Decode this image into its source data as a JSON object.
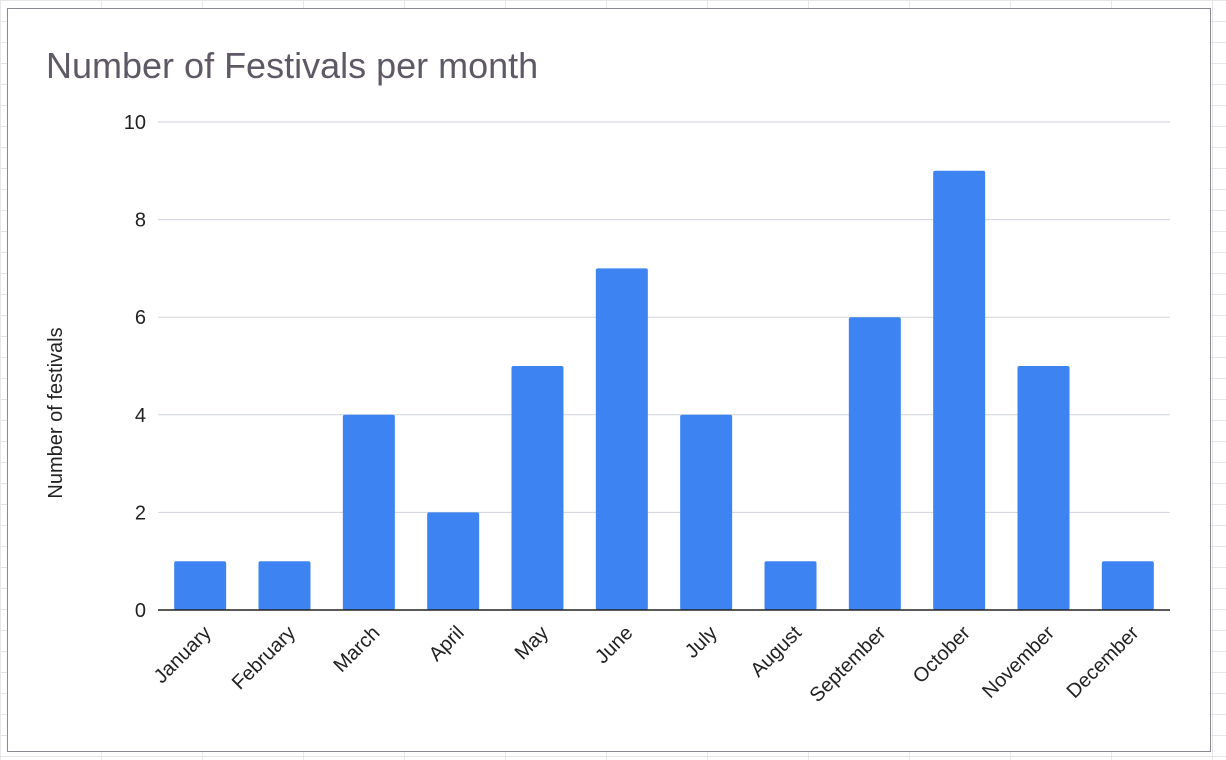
{
  "chart_data": {
    "type": "bar",
    "title": "Number of Festivals per month",
    "xlabel": "",
    "ylabel": "Number of festivals",
    "categories": [
      "January",
      "February",
      "March",
      "April",
      "May",
      "June",
      "July",
      "August",
      "September",
      "October",
      "November",
      "December"
    ],
    "values": [
      1,
      1,
      4,
      2,
      5,
      7,
      4,
      1,
      6,
      9,
      5,
      1
    ],
    "ylim": [
      0,
      10
    ],
    "yticks": [
      "0",
      "2",
      "4",
      "6",
      "8",
      "10"
    ],
    "grid": true,
    "legend": "none",
    "colors": {
      "bar": "#3d84f2",
      "grid": "#cfd3da",
      "axis": "#222222",
      "title": "#5f5865",
      "text": "#222222"
    }
  }
}
